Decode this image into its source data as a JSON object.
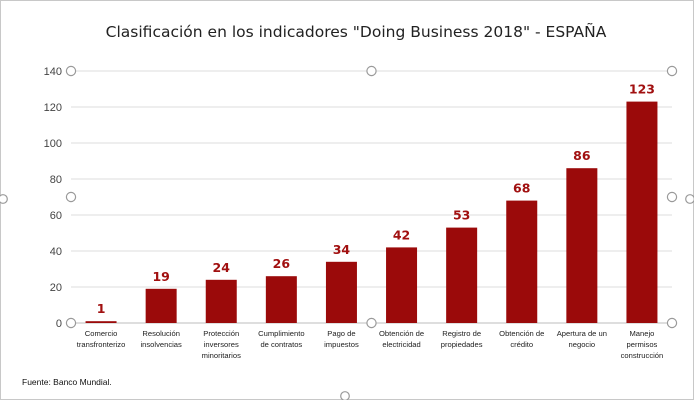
{
  "chart_data": {
    "type": "bar",
    "title": "Clasificación en los indicadores \"Doing Business 2018\" - ESPAÑA",
    "xlabel": "",
    "ylabel": "",
    "ylim": [
      0,
      140
    ],
    "yticks": [
      0,
      20,
      40,
      60,
      80,
      100,
      120,
      140
    ],
    "grid": true,
    "legend": "none",
    "categories": [
      [
        "Comercio",
        "transfronterizo"
      ],
      [
        "Resolución",
        "insolvencias"
      ],
      [
        "Protección",
        "inversores",
        "minoritarios"
      ],
      [
        "Cumplimiento",
        "de contratos"
      ],
      [
        "Pago de",
        "impuestos"
      ],
      [
        "Obtención de",
        "electricidad"
      ],
      [
        "Registro de",
        "propiedades"
      ],
      [
        "Obtención de",
        "crédito"
      ],
      [
        "Apertura de un",
        "negocio"
      ],
      [
        "Manejo",
        "permisos",
        "construcción"
      ]
    ],
    "values": [
      1,
      19,
      24,
      26,
      34,
      42,
      53,
      68,
      86,
      123
    ],
    "bar_color": "#9b0a0a",
    "label_color": "#a11010",
    "source": "Fuente: Banco Mundial."
  }
}
